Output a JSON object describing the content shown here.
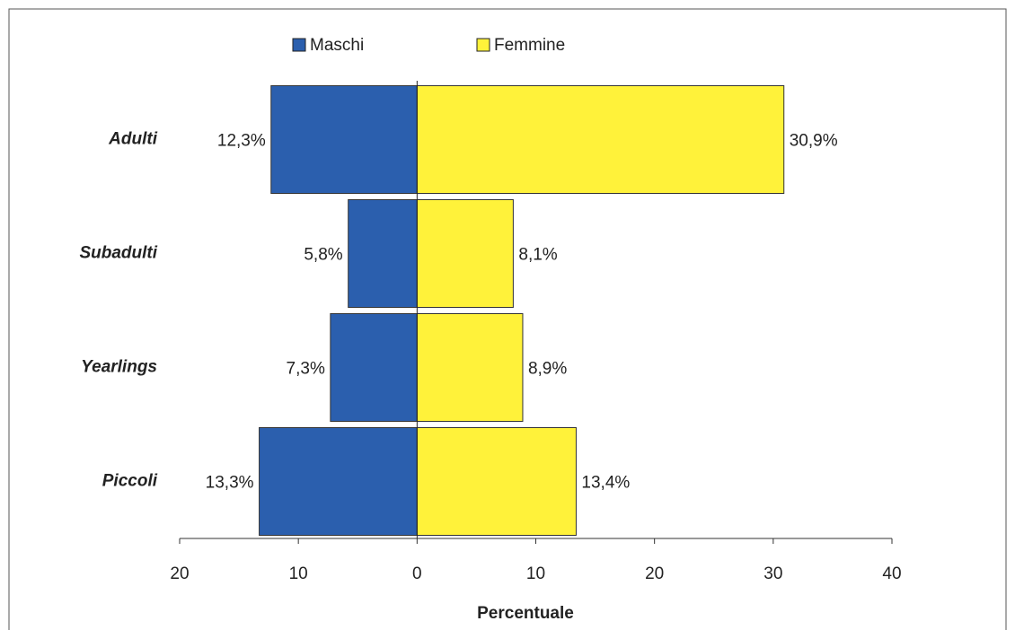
{
  "chart_data": {
    "type": "pyramid",
    "categories": [
      "Adulti",
      "Subadulti",
      "Yearlings",
      "Piccoli"
    ],
    "series": [
      {
        "name": "Maschi",
        "color": "#2b5fae",
        "values": [
          12.3,
          5.8,
          7.3,
          13.3
        ],
        "value_labels": [
          "12,3%",
          "5,8%",
          "7,3%",
          "13,3%"
        ]
      },
      {
        "name": "Femmine",
        "color": "#fff23a",
        "values": [
          30.9,
          8.1,
          8.9,
          13.4
        ],
        "value_labels": [
          "30,9%",
          "8,1%",
          "8,9%",
          "13,4%"
        ]
      }
    ],
    "x_label": "Percentuale",
    "xlim": [
      -20,
      40
    ],
    "xticks": [
      {
        "value": -20,
        "label": "20"
      },
      {
        "value": -10,
        "label": "10"
      },
      0,
      10,
      20,
      30,
      40
    ]
  }
}
